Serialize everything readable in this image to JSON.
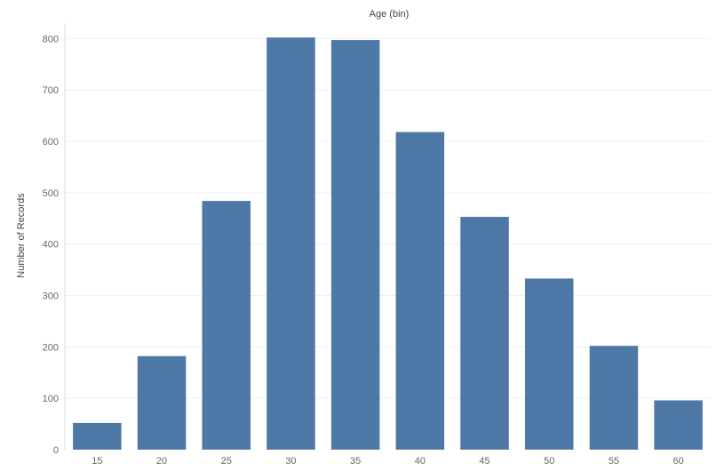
{
  "chart_data": {
    "type": "bar",
    "title": "Age (bin)",
    "xlabel": "",
    "ylabel": "Number of Records",
    "categories": [
      "15",
      "20",
      "25",
      "30",
      "35",
      "40",
      "45",
      "50",
      "55",
      "60"
    ],
    "values": [
      52,
      182,
      484,
      802,
      797,
      618,
      453,
      333,
      202,
      96
    ],
    "ylim": [
      0,
      830
    ],
    "yticks": [
      0,
      100,
      200,
      300,
      400,
      500,
      600,
      700,
      800
    ],
    "grid": true,
    "bar_color": "#4e79a7"
  }
}
